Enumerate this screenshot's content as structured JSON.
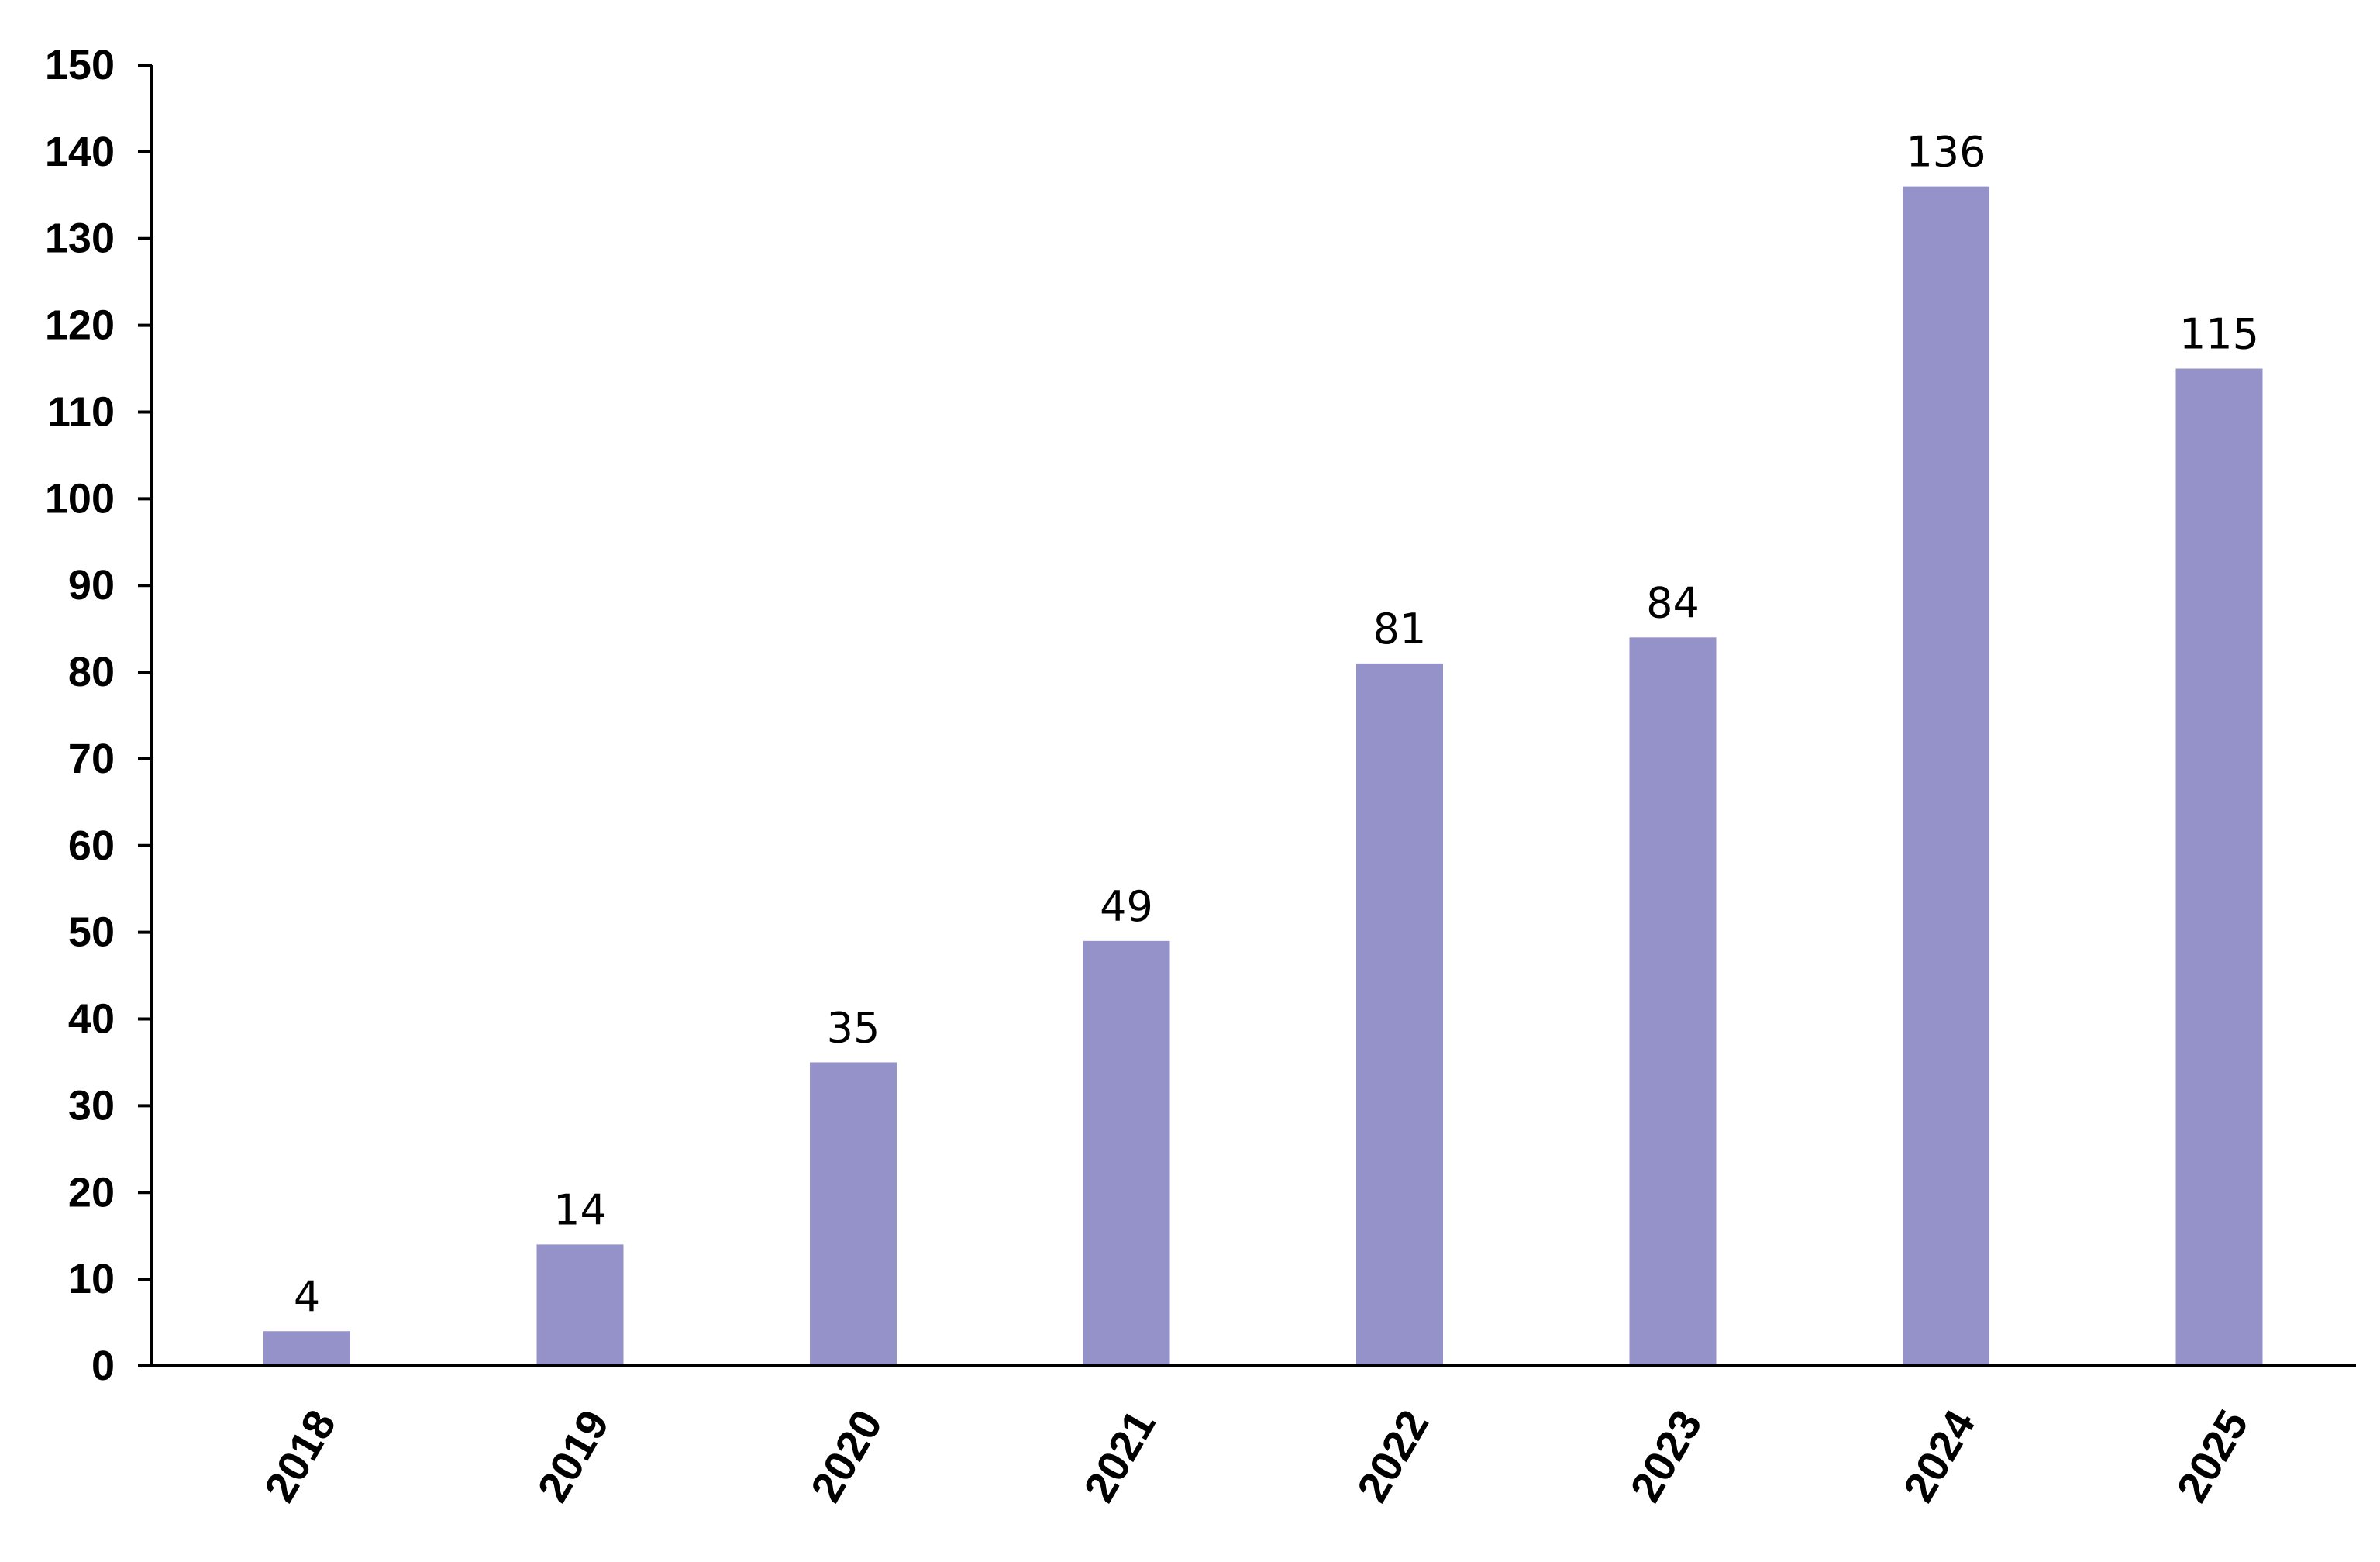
{
  "chart_data": {
    "type": "bar",
    "categories": [
      "2018",
      "2019",
      "2020",
      "2021",
      "2022",
      "2023",
      "2024",
      "2025"
    ],
    "values": [
      4,
      14,
      35,
      49,
      81,
      84,
      136,
      115
    ],
    "data_labels": [
      "4",
      "14",
      "35",
      "49",
      "81",
      "84",
      "136",
      "115"
    ],
    "y_ticks": [
      0,
      10,
      20,
      30,
      40,
      50,
      60,
      70,
      80,
      90,
      100,
      110,
      120,
      130,
      140,
      150
    ],
    "ylim": [
      0,
      150
    ],
    "title": "",
    "xlabel": "",
    "ylabel": "",
    "grid": false,
    "legend": "none",
    "colors": {
      "bar": "#9591c9",
      "axis": "#000000",
      "text": "#000000"
    }
  }
}
